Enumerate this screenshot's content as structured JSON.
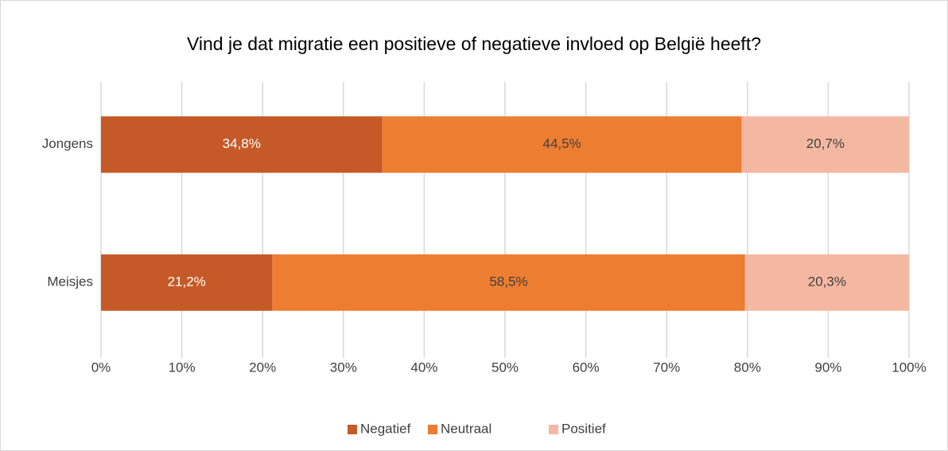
{
  "chart_data": {
    "type": "stacked-bar-horizontal",
    "title": "Vind je dat migratie een positieve of negatieve invloed op België heeft?",
    "categories": [
      "Jongens",
      "Meisjes"
    ],
    "series": [
      {
        "name": "Negatief",
        "color": "#c55a28",
        "values": [
          34.8,
          21.2
        ],
        "value_labels": [
          "34,8%",
          "21,2%"
        ]
      },
      {
        "name": "Neutraal",
        "color": "#ed7d31",
        "values": [
          44.5,
          58.5
        ],
        "value_labels": [
          "44,5%",
          "58,5%"
        ]
      },
      {
        "name": "Positief",
        "color": "#f4b8a2",
        "values": [
          20.7,
          20.3
        ],
        "value_labels": [
          "20,7%",
          "20,3%"
        ]
      }
    ],
    "xlim": [
      0,
      100
    ],
    "xticks": [
      {
        "value": 0,
        "label": "0%"
      },
      {
        "value": 10,
        "label": "10%"
      },
      {
        "value": 20,
        "label": "20%"
      },
      {
        "value": 30,
        "label": "30%"
      },
      {
        "value": 40,
        "label": "40%"
      },
      {
        "value": 50,
        "label": "50%"
      },
      {
        "value": 60,
        "label": "60%"
      },
      {
        "value": 70,
        "label": "70%"
      },
      {
        "value": 80,
        "label": "80%"
      },
      {
        "value": 90,
        "label": "90%"
      },
      {
        "value": 100,
        "label": "100%"
      }
    ],
    "grid": true,
    "legend": "bottom"
  }
}
